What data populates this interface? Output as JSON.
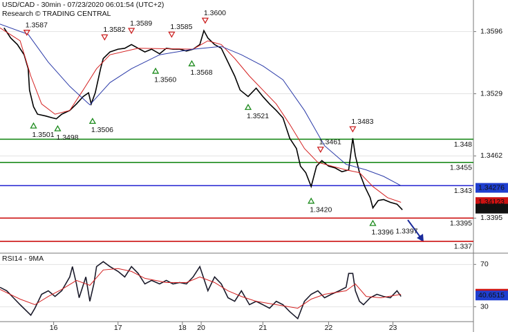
{
  "chart_data": [
    {
      "type": "line",
      "title": "USD/CAD - 30min - 07/23/2020 06:01:54 (UTC+2)",
      "subtitle": "Research © TRADING CENTRAL",
      "xlim": [
        0,
        353
      ],
      "ylim": [
        1.3358,
        1.363
      ],
      "yticks": [
        1.3596,
        1.3529,
        1.3462,
        1.3395
      ],
      "grid": true,
      "series": [
        {
          "color": "#000000",
          "x": [
            3,
            8,
            13,
            18,
            21,
            22,
            25,
            28,
            34,
            39,
            42,
            46,
            52,
            57,
            62,
            66,
            68,
            71,
            75,
            77,
            82,
            88,
            93,
            98,
            103,
            108,
            113,
            119,
            124,
            129,
            134,
            139,
            144,
            149,
            152,
            155,
            160,
            165,
            170,
            175,
            179,
            185,
            191,
            196,
            201,
            206,
            211,
            216,
            221,
            224,
            228,
            232,
            236,
            240,
            245,
            250,
            255,
            260,
            263,
            265,
            268,
            272,
            276,
            278,
            282,
            286,
            291,
            296,
            300
          ],
          "values": [
            1.36,
            1.3589,
            1.3582,
            1.3571,
            1.3556,
            1.3533,
            1.3515,
            1.3507,
            1.3505,
            1.3503,
            1.3502,
            1.3507,
            1.3511,
            1.3518,
            1.3526,
            1.353,
            1.3518,
            1.353,
            1.3556,
            1.3567,
            1.3574,
            1.3577,
            1.3578,
            1.3582,
            1.3578,
            1.3574,
            1.3577,
            1.3572,
            1.3578,
            1.3577,
            1.3577,
            1.3575,
            1.3577,
            1.3582,
            1.3597,
            1.3589,
            1.3582,
            1.3578,
            1.3563,
            1.3548,
            1.3533,
            1.3526,
            1.3535,
            1.3526,
            1.3518,
            1.3511,
            1.3503,
            1.3481,
            1.347,
            1.3451,
            1.3444,
            1.3429,
            1.3451,
            1.3457,
            1.3451,
            1.3449,
            1.3445,
            1.3447,
            1.3481,
            1.3462,
            1.3444,
            1.3429,
            1.3417,
            1.3406,
            1.3414,
            1.3415,
            1.3412,
            1.341,
            1.3404
          ]
        },
        {
          "color": "#d42020",
          "x": [
            0,
            15,
            23,
            31,
            41,
            52,
            62,
            72,
            82,
            103,
            144,
            155,
            165,
            175,
            186,
            196,
            206,
            216,
            227,
            237,
            258,
            268,
            278,
            289,
            299
          ],
          "values": [
            1.36,
            1.3586,
            1.3548,
            1.3518,
            1.3507,
            1.3511,
            1.3533,
            1.3556,
            1.3571,
            1.3578,
            1.3577,
            1.3586,
            1.3582,
            1.3567,
            1.3548,
            1.3533,
            1.3518,
            1.3496,
            1.347,
            1.3455,
            1.3447,
            1.3444,
            1.3429,
            1.3417,
            1.3412
          ]
        },
        {
          "color": "#2a3aa8",
          "x": [
            0,
            21,
            36,
            52,
            67,
            82,
            98,
            119,
            144,
            165,
            180,
            196,
            211,
            227,
            242,
            258,
            273,
            286,
            299
          ],
          "values": [
            1.3604,
            1.3593,
            1.3563,
            1.3537,
            1.3517,
            1.3541,
            1.3556,
            1.3571,
            1.3577,
            1.358,
            1.3571,
            1.3559,
            1.3544,
            1.3511,
            1.3473,
            1.3453,
            1.3447,
            1.344,
            1.343
          ]
        }
      ],
      "levels": {
        "values": [
          1.348,
          1.3455,
          1.343,
          1.3395,
          1.337
        ],
        "colors": [
          "#1b8a1b",
          "#1b8a1b",
          "#1f1fd0",
          "#cc1111",
          "#cc1111"
        ]
      },
      "price_tags": {
        "values": [
          1.34276,
          1.34123,
          1.34052
        ],
        "colors": [
          "#1f3fd0",
          "#cc1111",
          "#111111"
        ]
      },
      "markers": {
        "x": [
          20,
          78,
          98,
          128,
          153,
          25,
          43,
          69,
          116,
          143,
          185,
          239,
          263,
          232,
          278,
          296
        ],
        "values": [
          1.3587,
          1.3582,
          1.3589,
          1.3585,
          1.36,
          1.3501,
          1.3498,
          1.3506,
          1.356,
          1.3568,
          1.3521,
          1.3461,
          1.3483,
          1.342,
          1.3396,
          1.3397
        ],
        "value_labels": [
          "1.3587",
          "1.3582",
          "1.3589",
          "1.3585",
          "1.3600",
          "1.3501",
          "1.3498",
          "1.3506",
          "1.3560",
          "1.3568",
          "1.3521",
          "1.3461",
          "1.3483",
          "1.3420",
          "1.3396",
          "1.3397"
        ],
        "kinds": [
          "high",
          "high",
          "high",
          "high",
          "high",
          "low",
          "low",
          "low",
          "low",
          "low",
          "low",
          "high",
          "high",
          "low",
          "low",
          "target"
        ]
      }
    },
    {
      "type": "line",
      "title": "RSI14 - 9MA",
      "xlim": [
        0,
        353
      ],
      "ylim": [
        16,
        80
      ],
      "yticks": [
        70,
        30
      ],
      "grid": true,
      "xticks": [
        {
          "value": 40,
          "label": "16"
        },
        {
          "value": 88,
          "label": "17"
        },
        {
          "value": 136,
          "label": "18"
        },
        {
          "value": 150,
          "label": "20"
        },
        {
          "value": 196,
          "label": "21"
        },
        {
          "value": 245,
          "label": "22"
        },
        {
          "value": 293,
          "label": "23"
        }
      ],
      "series": [
        {
          "color": "#1a1a2a",
          "x": [
            0,
            5,
            10,
            15,
            23,
            26,
            31,
            36,
            41,
            46,
            52,
            54,
            57,
            59,
            64,
            67,
            70,
            72,
            77,
            82,
            88,
            93,
            98,
            103,
            108,
            113,
            119,
            124,
            129,
            134,
            139,
            144,
            149,
            155,
            160,
            165,
            170,
            175,
            180,
            186,
            191,
            196,
            201,
            206,
            211,
            216,
            222,
            227,
            232,
            237,
            242,
            247,
            253,
            258,
            260,
            263,
            265,
            268,
            271,
            276,
            281,
            286,
            291,
            296,
            299
          ],
          "values": [
            48.4,
            45.1,
            38.5,
            32.0,
            22.1,
            28.7,
            41.8,
            45.1,
            39.8,
            45.1,
            58.2,
            68.0,
            51.6,
            38.5,
            58.2,
            35.2,
            51.6,
            68.0,
            72.6,
            68.0,
            63.4,
            58.2,
            68.0,
            61.5,
            51.6,
            54.9,
            51.6,
            54.9,
            51.6,
            52.9,
            51.6,
            58.2,
            68.0,
            45.1,
            58.2,
            51.6,
            38.5,
            35.2,
            45.1,
            32.0,
            35.2,
            32.0,
            28.7,
            35.2,
            32.0,
            25.4,
            18.8,
            35.2,
            41.8,
            45.1,
            38.5,
            41.8,
            45.1,
            48.4,
            61.5,
            61.5,
            45.1,
            35.2,
            32.0,
            38.5,
            41.8,
            39.8,
            38.5,
            45.1,
            39.8
          ]
        },
        {
          "color": "#d42020",
          "x": [
            0,
            15,
            26,
            36,
            46,
            57,
            67,
            77,
            88,
            98,
            108,
            124,
            139,
            149,
            160,
            170,
            180,
            191,
            206,
            222,
            232,
            242,
            258,
            265,
            273,
            284,
            299
          ],
          "values": [
            46.4,
            37.2,
            32.0,
            39.8,
            46.4,
            54.9,
            50.3,
            64.8,
            66.1,
            63.4,
            56.9,
            52.9,
            52.9,
            58.2,
            52.9,
            45.1,
            39.8,
            35.2,
            32.0,
            28.7,
            37.2,
            41.8,
            45.1,
            51.6,
            39.8,
            38.5,
            41.8
          ]
        }
      ],
      "price_tags": {
        "values": [
          42.3234,
          40.6515
        ],
        "colors": [
          "#cc1111",
          "#1f3fd0"
        ]
      }
    }
  ]
}
